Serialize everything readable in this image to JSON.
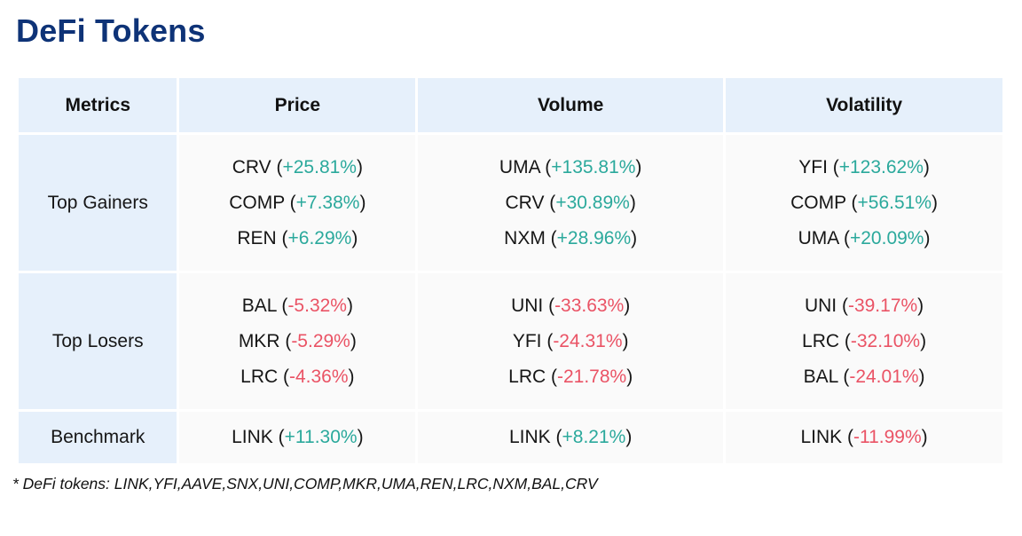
{
  "page": {
    "title": "DeFi Tokens"
  },
  "colors": {
    "title": "#0e3377",
    "header_bg": "#e6f0fb",
    "label_bg": "#e6f0fb",
    "cell_bg": "#fafafa",
    "positive": "#2ba99c",
    "negative": "#ea5365",
    "body_text": "#161616"
  },
  "chart_data": {
    "type": "table",
    "title": "DeFi Tokens",
    "columns": [
      "Metrics",
      "Price",
      "Volume",
      "Volatility"
    ],
    "rows": [
      {
        "metric": "Top Gainers",
        "cells": [
          [
            {
              "token": "CRV",
              "change": "+25.81%"
            },
            {
              "token": "COMP",
              "change": "+7.38%"
            },
            {
              "token": "REN",
              "change": "+6.29%"
            }
          ],
          [
            {
              "token": "UMA",
              "change": "+135.81%"
            },
            {
              "token": "CRV",
              "change": "+30.89%"
            },
            {
              "token": "NXM",
              "change": "+28.96%"
            }
          ],
          [
            {
              "token": "YFI",
              "change": "+123.62%"
            },
            {
              "token": "COMP",
              "change": "+56.51%"
            },
            {
              "token": "UMA",
              "change": "+20.09%"
            }
          ]
        ]
      },
      {
        "metric": "Top Losers",
        "cells": [
          [
            {
              "token": "BAL",
              "change": "-5.32%"
            },
            {
              "token": "MKR",
              "change": "-5.29%"
            },
            {
              "token": "LRC",
              "change": "-4.36%"
            }
          ],
          [
            {
              "token": "UNI",
              "change": "-33.63%"
            },
            {
              "token": "YFI",
              "change": "-24.31%"
            },
            {
              "token": "LRC",
              "change": "-21.78%"
            }
          ],
          [
            {
              "token": "UNI",
              "change": "-39.17%"
            },
            {
              "token": "LRC",
              "change": "-32.10%"
            },
            {
              "token": "BAL",
              "change": "-24.01%"
            }
          ]
        ]
      },
      {
        "metric": "Benchmark",
        "cells": [
          [
            {
              "token": "LINK",
              "change": "+11.30%"
            }
          ],
          [
            {
              "token": "LINK",
              "change": "+8.21%"
            }
          ],
          [
            {
              "token": "LINK",
              "change": "-11.99%"
            }
          ]
        ]
      }
    ],
    "footnote": "* DeFi tokens: LINK,YFI,AAVE,SNX,UNI,COMP,MKR,UMA,REN,LRC,NXM,BAL,CRV"
  }
}
